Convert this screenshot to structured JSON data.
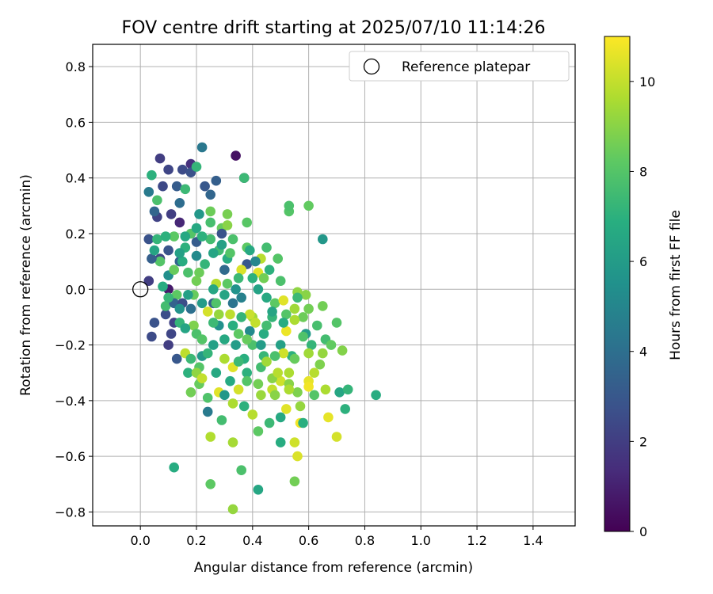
{
  "chart_data": {
    "type": "scatter",
    "title": "FOV centre drift starting at 2025/07/10 11:14:26",
    "xlabel": "Angular distance from reference (arcmin)",
    "ylabel": "Rotation from reference (arcmin)",
    "xlim": [
      -0.17,
      1.55
    ],
    "ylim": [
      -0.85,
      0.88
    ],
    "xticks": [
      "0.0",
      "0.2",
      "0.4",
      "0.6",
      "0.8",
      "1.0",
      "1.2",
      "1.4"
    ],
    "yticks": [
      "0.8",
      "0.6",
      "0.4",
      "0.2",
      "0.0",
      "−0.2",
      "−0.4",
      "−0.6",
      "−0.8"
    ],
    "grid": true,
    "legend": {
      "position": "top-right",
      "label": "Reference platepar",
      "marker": "open-circle"
    },
    "reference_point": {
      "x": 0.0,
      "y": 0.0
    },
    "colorbar": {
      "label": "Hours from first FF file",
      "colormap": "viridis",
      "range": [
        0,
        11
      ],
      "ticks": [
        "0",
        "2",
        "4",
        "6",
        "8",
        "10"
      ]
    },
    "series": [
      {
        "points": [
          [
            0.34,
            0.48,
            0.5
          ],
          [
            0.37,
            0.4,
            1.0
          ],
          [
            0.1,
            0.0,
            0.8
          ],
          [
            0.18,
            0.45,
            1.5
          ],
          [
            0.07,
            0.47,
            2.0
          ],
          [
            0.1,
            0.43,
            2.3
          ],
          [
            0.15,
            0.43,
            2.5
          ],
          [
            0.22,
            0.51,
            4.4
          ],
          [
            0.06,
            0.26,
            2.2
          ],
          [
            0.14,
            0.24,
            1.2
          ],
          [
            0.11,
            0.27,
            2.0
          ],
          [
            0.03,
            0.18,
            2.8
          ],
          [
            0.03,
            0.03,
            2.0
          ],
          [
            0.1,
            -0.2,
            2.0
          ],
          [
            0.11,
            -0.16,
            2.3
          ],
          [
            0.04,
            -0.17,
            2.5
          ],
          [
            0.05,
            -0.12,
            2.8
          ],
          [
            0.12,
            -0.12,
            2.2
          ],
          [
            0.09,
            -0.09,
            2.6
          ],
          [
            0.07,
            0.11,
            2.3
          ],
          [
            0.18,
            0.42,
            2.7
          ],
          [
            0.23,
            0.37,
            3.0
          ],
          [
            0.27,
            0.39,
            3.3
          ],
          [
            0.25,
            0.34,
            3.6
          ],
          [
            0.2,
            0.17,
            3.2
          ],
          [
            0.14,
            0.1,
            3.5
          ],
          [
            0.3,
            0.07,
            3.8
          ],
          [
            0.26,
            -0.05,
            3.4
          ],
          [
            0.33,
            -0.05,
            4.2
          ],
          [
            0.38,
            0.09,
            3.0
          ],
          [
            0.24,
            -0.44,
            4.5
          ],
          [
            0.65,
            0.18,
            5.8
          ],
          [
            0.42,
            -0.72,
            6.5
          ],
          [
            0.12,
            -0.64,
            6.8
          ],
          [
            0.04,
            0.41,
            7.0
          ],
          [
            0.2,
            0.44,
            7.2
          ],
          [
            0.37,
            0.4,
            7.4
          ],
          [
            0.53,
            0.28,
            8.0
          ],
          [
            0.53,
            0.3,
            7.8
          ],
          [
            0.6,
            0.3,
            8.3
          ],
          [
            0.38,
            0.24,
            8.1
          ],
          [
            0.45,
            0.15,
            7.6
          ],
          [
            0.49,
            0.11,
            8.0
          ],
          [
            0.36,
            -0.65,
            7.8
          ],
          [
            0.25,
            -0.7,
            8.2
          ],
          [
            0.55,
            -0.69,
            8.6
          ],
          [
            0.33,
            -0.79,
            9.2
          ],
          [
            0.33,
            -0.55,
            9.5
          ],
          [
            0.25,
            -0.53,
            9.7
          ],
          [
            0.55,
            -0.55,
            10.2
          ],
          [
            0.56,
            -0.6,
            10.4
          ],
          [
            0.7,
            -0.53,
            10.3
          ],
          [
            0.67,
            -0.46,
            10.6
          ],
          [
            0.57,
            -0.48,
            10.8
          ],
          [
            0.52,
            -0.43,
            10.5
          ],
          [
            0.47,
            -0.36,
            10.0
          ],
          [
            0.43,
            -0.38,
            9.3
          ],
          [
            0.4,
            -0.45,
            9.8
          ],
          [
            0.28,
            -0.37,
            10.5
          ],
          [
            0.33,
            -0.41,
            9.6
          ],
          [
            0.5,
            -0.33,
            10.2
          ],
          [
            0.53,
            -0.34,
            9.0
          ],
          [
            0.6,
            -0.33,
            10.6
          ],
          [
            0.62,
            -0.3,
            9.8
          ],
          [
            0.72,
            -0.22,
            8.9
          ],
          [
            0.7,
            -0.12,
            8.0
          ],
          [
            0.65,
            -0.06,
            8.6
          ],
          [
            0.56,
            -0.01,
            9.1
          ],
          [
            0.58,
            -0.1,
            8.5
          ],
          [
            0.48,
            -0.05,
            8.2
          ],
          [
            0.4,
            -0.1,
            9.4
          ],
          [
            0.42,
            0.06,
            10.5
          ],
          [
            0.43,
            0.11,
            9.8
          ],
          [
            0.36,
            0.07,
            10.4
          ],
          [
            0.21,
            0.06,
            8.5
          ],
          [
            0.27,
            0.02,
            9.8
          ],
          [
            0.32,
            -0.09,
            9.9
          ],
          [
            0.39,
            -0.09,
            10.1
          ],
          [
            0.52,
            -0.15,
            10.7
          ],
          [
            0.24,
            -0.08,
            10.3
          ],
          [
            0.16,
            -0.23,
            9.9
          ],
          [
            0.33,
            -0.28,
            10.5
          ],
          [
            0.3,
            -0.25,
            9.6
          ],
          [
            0.19,
            -0.13,
            8.8
          ],
          [
            0.21,
            -0.34,
            8.4
          ],
          [
            0.24,
            -0.39,
            7.9
          ],
          [
            0.18,
            -0.25,
            7.4
          ],
          [
            0.17,
            -0.3,
            7.0
          ],
          [
            0.21,
            -0.28,
            8.0
          ],
          [
            0.14,
            -0.12,
            7.2
          ],
          [
            0.09,
            -0.06,
            7.6
          ],
          [
            0.13,
            -0.02,
            8.2
          ],
          [
            0.2,
            0.03,
            8.6
          ],
          [
            0.07,
            0.1,
            8.0
          ],
          [
            0.06,
            0.18,
            7.2
          ],
          [
            0.15,
            0.1,
            6.8
          ],
          [
            0.16,
            0.15,
            7.0
          ],
          [
            0.12,
            0.19,
            8.2
          ],
          [
            0.25,
            0.18,
            7.6
          ],
          [
            0.29,
            0.22,
            8.4
          ],
          [
            0.31,
            0.27,
            8.7
          ],
          [
            0.28,
            0.14,
            7.5
          ],
          [
            0.31,
            0.11,
            6.8
          ],
          [
            0.33,
            0.18,
            7.8
          ],
          [
            0.38,
            0.15,
            8.2
          ],
          [
            0.41,
            0.1,
            5.0
          ],
          [
            0.42,
            0.0,
            6.3
          ],
          [
            0.45,
            -0.03,
            6.6
          ],
          [
            0.47,
            -0.1,
            7.2
          ],
          [
            0.44,
            -0.16,
            6.8
          ],
          [
            0.4,
            -0.2,
            7.8
          ],
          [
            0.38,
            -0.3,
            7.0
          ],
          [
            0.32,
            -0.33,
            6.7
          ],
          [
            0.29,
            -0.47,
            7.6
          ],
          [
            0.38,
            -0.33,
            8.0
          ],
          [
            0.44,
            -0.24,
            7.3
          ],
          [
            0.5,
            -0.2,
            6.2
          ],
          [
            0.54,
            -0.24,
            7.0
          ],
          [
            0.59,
            -0.16,
            6.0
          ],
          [
            0.61,
            -0.2,
            7.2
          ],
          [
            0.66,
            -0.18,
            7.6
          ],
          [
            0.71,
            -0.37,
            6.5
          ],
          [
            0.74,
            -0.36,
            7.2
          ],
          [
            0.84,
            -0.38,
            6.8
          ],
          [
            0.73,
            -0.43,
            7.0
          ],
          [
            0.58,
            -0.48,
            6.9
          ],
          [
            0.5,
            -0.46,
            6.6
          ],
          [
            0.5,
            -0.55,
            6.8
          ],
          [
            0.46,
            -0.48,
            7.4
          ],
          [
            0.42,
            -0.51,
            8.2
          ],
          [
            0.37,
            -0.42,
            7.0
          ],
          [
            0.3,
            -0.38,
            5.8
          ],
          [
            0.26,
            -0.2,
            6.2
          ],
          [
            0.28,
            -0.13,
            5.5
          ],
          [
            0.22,
            -0.05,
            6.0
          ],
          [
            0.26,
            0.0,
            6.5
          ],
          [
            0.18,
            -0.07,
            4.0
          ],
          [
            0.12,
            -0.05,
            3.5
          ],
          [
            0.2,
            0.12,
            5.2
          ],
          [
            0.26,
            0.13,
            6.4
          ],
          [
            0.34,
            0.0,
            5.6
          ],
          [
            0.36,
            -0.03,
            4.8
          ],
          [
            0.39,
            -0.15,
            5.2
          ],
          [
            0.34,
            -0.2,
            6.0
          ],
          [
            0.27,
            -0.3,
            6.6
          ],
          [
            0.22,
            -0.24,
            5.9
          ],
          [
            0.15,
            -0.05,
            2.6
          ],
          [
            0.1,
            0.14,
            2.9
          ],
          [
            0.04,
            0.11,
            3.3
          ],
          [
            0.05,
            0.28,
            3.6
          ],
          [
            0.08,
            0.37,
            2.4
          ],
          [
            0.13,
            0.37,
            3.2
          ],
          [
            0.03,
            0.35,
            4.5
          ],
          [
            0.1,
            -0.03,
            7.3
          ],
          [
            0.14,
            0.31,
            3.9
          ],
          [
            0.06,
            0.32,
            7.8
          ],
          [
            0.16,
            0.36,
            7.4
          ],
          [
            0.25,
            0.28,
            8.5
          ],
          [
            0.29,
            0.2,
            2.8
          ],
          [
            0.21,
            0.27,
            5.8
          ],
          [
            0.25,
            0.24,
            7.7
          ],
          [
            0.31,
            0.02,
            8.2
          ],
          [
            0.39,
            0.14,
            6.6
          ],
          [
            0.46,
            0.07,
            7.0
          ],
          [
            0.5,
            0.03,
            7.8
          ],
          [
            0.55,
            -0.07,
            9.4
          ],
          [
            0.58,
            -0.17,
            7.9
          ],
          [
            0.55,
            -0.25,
            8.4
          ],
          [
            0.53,
            -0.3,
            9.6
          ],
          [
            0.47,
            -0.32,
            9.0
          ],
          [
            0.43,
            -0.28,
            7.6
          ],
          [
            0.37,
            -0.25,
            6.9
          ],
          [
            0.35,
            -0.16,
            8.2
          ],
          [
            0.41,
            -0.12,
            10.0
          ],
          [
            0.28,
            -0.09,
            9.2
          ],
          [
            0.2,
            -0.16,
            7.8
          ],
          [
            0.24,
            -0.23,
            7.2
          ],
          [
            0.18,
            -0.37,
            8.6
          ],
          [
            0.13,
            -0.25,
            3.0
          ],
          [
            0.2,
            -0.3,
            9.1
          ],
          [
            0.22,
            -0.32,
            10.0
          ],
          [
            0.35,
            -0.36,
            10.3
          ],
          [
            0.45,
            -0.26,
            9.4
          ],
          [
            0.51,
            -0.23,
            10.2
          ],
          [
            0.49,
            -0.3,
            9.8
          ],
          [
            0.56,
            -0.37,
            8.8
          ],
          [
            0.6,
            -0.35,
            10.8
          ],
          [
            0.66,
            -0.36,
            9.6
          ],
          [
            0.64,
            -0.27,
            8.8
          ],
          [
            0.68,
            -0.2,
            8.3
          ],
          [
            0.63,
            -0.13,
            7.7
          ],
          [
            0.59,
            -0.02,
            9.0
          ],
          [
            0.52,
            -0.09,
            8.0
          ],
          [
            0.47,
            -0.08,
            6.4
          ],
          [
            0.44,
            0.04,
            8.6
          ],
          [
            0.4,
            0.04,
            7.0
          ],
          [
            0.35,
            0.04,
            7.4
          ],
          [
            0.32,
            0.13,
            8.0
          ],
          [
            0.31,
            0.23,
            9.0
          ],
          [
            0.29,
            0.16,
            6.2
          ],
          [
            0.22,
            0.19,
            7.0
          ],
          [
            0.18,
            0.2,
            8.0
          ],
          [
            0.17,
            0.06,
            7.8
          ],
          [
            0.19,
            -0.02,
            8.4
          ],
          [
            0.27,
            -0.05,
            7.9
          ],
          [
            0.3,
            -0.18,
            6.6
          ],
          [
            0.35,
            -0.26,
            7.4
          ],
          [
            0.42,
            -0.34,
            8.6
          ],
          [
            0.48,
            -0.38,
            9.0
          ],
          [
            0.53,
            -0.36,
            9.6
          ],
          [
            0.57,
            -0.42,
            9.2
          ],
          [
            0.62,
            -0.38,
            8.0
          ],
          [
            0.65,
            -0.23,
            9.2
          ],
          [
            0.6,
            -0.07,
            8.6
          ],
          [
            0.56,
            -0.03,
            7.4
          ],
          [
            0.51,
            -0.12,
            6.8
          ],
          [
            0.45,
            -0.13,
            7.6
          ],
          [
            0.36,
            -0.1,
            7.2
          ],
          [
            0.3,
            -0.02,
            6.4
          ],
          [
            0.23,
            0.09,
            7.2
          ],
          [
            0.2,
            0.22,
            6.6
          ],
          [
            0.14,
            0.13,
            6.2
          ],
          [
            0.1,
            0.05,
            5.4
          ],
          [
            0.08,
            0.01,
            6.8
          ],
          [
            0.05,
            0.14,
            6.4
          ],
          [
            0.09,
            0.19,
            7.0
          ],
          [
            0.16,
            0.19,
            6.6
          ],
          [
            0.12,
            0.07,
            8.4
          ],
          [
            0.17,
            -0.02,
            6.2
          ],
          [
            0.14,
            -0.07,
            5.6
          ],
          [
            0.16,
            -0.14,
            6.4
          ],
          [
            0.22,
            -0.18,
            8.0
          ],
          [
            0.26,
            -0.12,
            7.4
          ],
          [
            0.33,
            -0.13,
            6.9
          ],
          [
            0.38,
            -0.18,
            8.4
          ],
          [
            0.43,
            -0.2,
            6.0
          ],
          [
            0.48,
            -0.24,
            7.8
          ],
          [
            0.51,
            -0.04,
            10.5
          ],
          [
            0.55,
            -0.11,
            9.6
          ],
          [
            0.6,
            -0.23,
            9.4
          ]
        ]
      }
    ]
  }
}
